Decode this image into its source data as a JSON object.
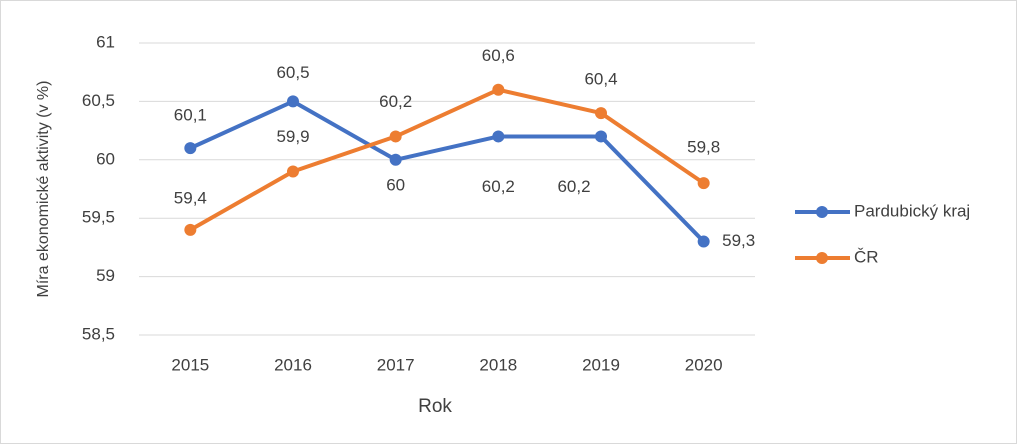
{
  "chart_data": {
    "type": "line",
    "x_label": "Rok",
    "y_label": "Míra ekonomické aktivity (v %)",
    "categories": [
      "2015",
      "2016",
      "2017",
      "2018",
      "2019",
      "2020"
    ],
    "series": [
      {
        "name": "Pardubický kraj",
        "color": "#4472c4",
        "values": [
          60.1,
          60.5,
          60,
          60.2,
          60.2,
          59.3
        ],
        "value_labels": [
          "60,1",
          "60,5",
          "60",
          "60,2",
          "60,2",
          "59,3"
        ]
      },
      {
        "name": "ČR",
        "color": "#ed7d31",
        "values": [
          59.4,
          59.9,
          60.2,
          60.6,
          60.4,
          59.8
        ],
        "value_labels": [
          "59,4",
          "59,9",
          "60,2",
          "60,6",
          "60,4",
          "59,8"
        ]
      }
    ],
    "ylim": [
      58.5,
      61
    ],
    "yticks": [
      {
        "value": 58.5,
        "label": "58,5"
      },
      59,
      {
        "value": 59.5,
        "label": "59,5"
      },
      60,
      {
        "value": 60.5,
        "label": "60,5"
      },
      61
    ],
    "grid": true,
    "legend": "right"
  }
}
